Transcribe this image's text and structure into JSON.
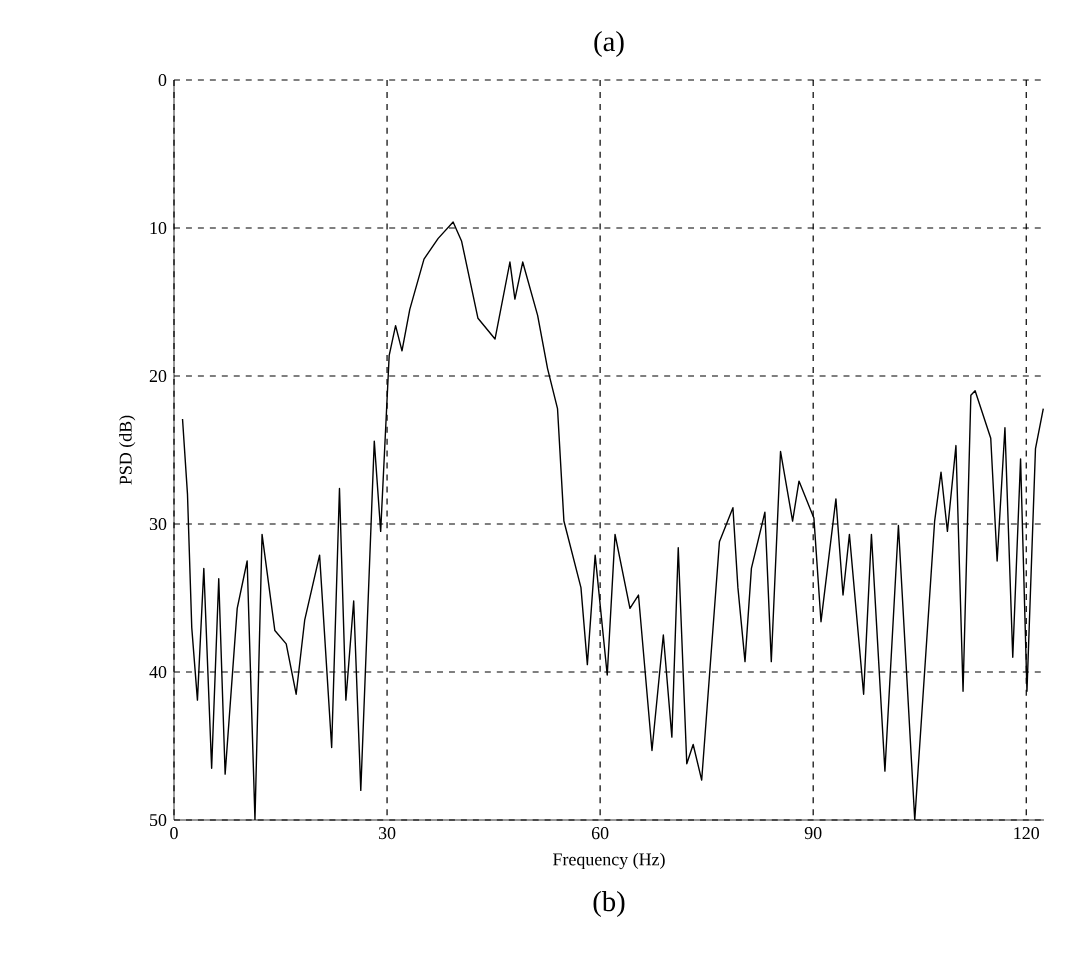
{
  "chart_data": {
    "type": "line",
    "title": "(a)",
    "xlabel": "Frequency (Hz)",
    "ylabel": "PSD (dB)",
    "annotations": [
      "(b)"
    ],
    "xlim": [
      0,
      122.5
    ],
    "ylim": [
      50,
      0
    ],
    "xticks": [
      0,
      30,
      60,
      90,
      120
    ],
    "yticks": [
      0,
      10,
      20,
      30,
      40,
      50
    ],
    "grid": true,
    "series": [
      {
        "color": "#000000",
        "x": [
          1.2,
          1.9,
          2.5,
          3.3,
          4.2,
          5.3,
          6.3,
          7.2,
          8.9,
          10.3,
          11.4,
          12.4,
          14.2,
          15.8,
          17.2,
          18.4,
          20.5,
          22.2,
          23.3,
          24.2,
          25.3,
          26.3,
          28.2,
          29.1,
          30.3,
          31.2,
          32.1,
          33.2,
          35.2,
          37.2,
          39.3,
          40.5,
          42.8,
          45.2,
          47.3,
          48.0,
          49.1,
          51.2,
          52.6,
          54.0,
          54.9,
          57.3,
          58.2,
          59.3,
          61.0,
          62.1,
          64.2,
          65.4,
          67.3,
          68.9,
          70.1,
          71.0,
          72.2,
          73.1,
          74.3,
          76.8,
          78.7,
          79.4,
          80.4,
          81.3,
          83.2,
          84.1,
          85.4,
          87.1,
          88.0,
          90.1,
          91.1,
          93.2,
          94.2,
          95.1,
          97.1,
          98.2,
          100.1,
          102.0,
          104.3,
          107.1,
          108.0,
          108.9,
          110.1,
          111.1,
          112.2,
          112.8,
          115.0,
          115.9,
          117.0,
          118.1,
          119.2,
          120.1,
          121.3,
          122.4
        ],
        "values": [
          22.9,
          28.0,
          37.0,
          41.9,
          33.0,
          46.5,
          33.7,
          46.9,
          35.7,
          32.5,
          50,
          30.7,
          37.2,
          38.1,
          41.5,
          36.5,
          32.1,
          45.1,
          27.6,
          41.9,
          35.2,
          48.0,
          24.4,
          30.5,
          18.6,
          16.6,
          18.3,
          15.5,
          12.1,
          10.7,
          9.6,
          10.9,
          16.1,
          17.5,
          12.3,
          14.8,
          12.3,
          15.9,
          19.5,
          22.2,
          29.8,
          34.3,
          39.5,
          32.1,
          40.2,
          30.7,
          35.7,
          34.8,
          45.3,
          37.5,
          44.4,
          31.6,
          46.2,
          44.9,
          47.3,
          31.2,
          28.9,
          34.3,
          39.3,
          33.0,
          29.2,
          39.3,
          25.1,
          29.8,
          27.1,
          29.6,
          36.6,
          28.3,
          34.8,
          30.7,
          41.5,
          30.7,
          46.7,
          30.1,
          50,
          29.8,
          26.5,
          30.5,
          24.7,
          41.3,
          21.3,
          21.0,
          24.2,
          32.5,
          23.5,
          39.0,
          25.6,
          41.3,
          24.9,
          22.2
        ]
      }
    ]
  }
}
